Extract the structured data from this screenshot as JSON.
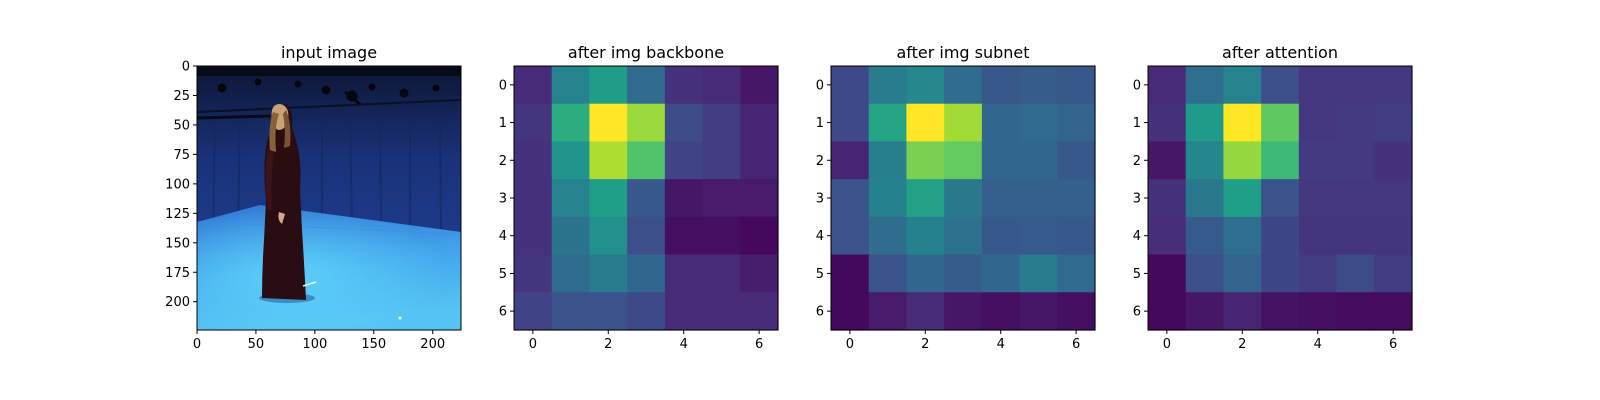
{
  "chart_data": [
    {
      "type": "image",
      "title": "input image",
      "image_width": 224,
      "image_height": 224,
      "xlim": [
        0,
        224
      ],
      "ylim": [
        224,
        0
      ],
      "xticks": [
        0,
        50,
        100,
        150,
        200
      ],
      "yticks": [
        0,
        25,
        50,
        75,
        100,
        125,
        150,
        175,
        200
      ],
      "xtick_labels": [
        "0",
        "50",
        "100",
        "150",
        "200"
      ],
      "ytick_labels": [
        "0",
        "25",
        "50",
        "75",
        "100",
        "125",
        "150",
        "175",
        "200"
      ],
      "content": "photo of a woman in a long dark dress standing in a blue-walled motion-capture studio with cameras mounted above",
      "colors": {
        "wall_top": "#101a3a",
        "wall_mid": "#1d3c8a",
        "floor_far": "#2f78d8",
        "floor_near": "#57c8f6"
      }
    },
    {
      "type": "heatmap",
      "title": "after img backbone",
      "colormap": "viridis",
      "xticks": [
        0,
        2,
        4,
        6
      ],
      "yticks": [
        0,
        1,
        2,
        3,
        4,
        5,
        6
      ],
      "xtick_labels": [
        "0",
        "2",
        "4",
        "6"
      ],
      "ytick_labels": [
        "0",
        "1",
        "2",
        "3",
        "4",
        "5",
        "6"
      ],
      "values": [
        [
          0.12,
          0.45,
          0.55,
          0.34,
          0.14,
          0.12,
          0.06
        ],
        [
          0.15,
          0.62,
          1.0,
          0.85,
          0.23,
          0.18,
          0.1
        ],
        [
          0.14,
          0.52,
          0.88,
          0.72,
          0.2,
          0.18,
          0.1
        ],
        [
          0.14,
          0.45,
          0.56,
          0.27,
          0.06,
          0.07,
          0.07
        ],
        [
          0.14,
          0.38,
          0.5,
          0.24,
          0.04,
          0.04,
          0.02
        ],
        [
          0.15,
          0.35,
          0.42,
          0.33,
          0.12,
          0.12,
          0.08
        ],
        [
          0.2,
          0.26,
          0.26,
          0.22,
          0.12,
          0.12,
          0.12
        ]
      ]
    },
    {
      "type": "heatmap",
      "title": "after img subnet",
      "colormap": "viridis",
      "xticks": [
        0,
        2,
        4,
        6
      ],
      "yticks": [
        0,
        1,
        2,
        3,
        4,
        5,
        6
      ],
      "xtick_labels": [
        "0",
        "2",
        "4",
        "6"
      ],
      "ytick_labels": [
        "0",
        "1",
        "2",
        "3",
        "4",
        "5",
        "6"
      ],
      "values": [
        [
          0.22,
          0.42,
          0.47,
          0.35,
          0.27,
          0.29,
          0.27
        ],
        [
          0.22,
          0.58,
          1.0,
          0.86,
          0.33,
          0.34,
          0.32
        ],
        [
          0.1,
          0.43,
          0.8,
          0.76,
          0.33,
          0.33,
          0.27
        ],
        [
          0.26,
          0.44,
          0.57,
          0.4,
          0.3,
          0.3,
          0.3
        ],
        [
          0.25,
          0.35,
          0.44,
          0.37,
          0.27,
          0.28,
          0.27
        ],
        [
          0.02,
          0.26,
          0.33,
          0.29,
          0.33,
          0.42,
          0.34
        ],
        [
          0.02,
          0.07,
          0.12,
          0.06,
          0.04,
          0.06,
          0.04
        ]
      ]
    },
    {
      "type": "heatmap",
      "title": "after attention",
      "colormap": "viridis",
      "xticks": [
        0,
        2,
        4,
        6
      ],
      "yticks": [
        0,
        1,
        2,
        3,
        4,
        5,
        6
      ],
      "xtick_labels": [
        "0",
        "2",
        "4",
        "6"
      ],
      "ytick_labels": [
        "0",
        "1",
        "2",
        "3",
        "4",
        "5",
        "6"
      ],
      "values": [
        [
          0.12,
          0.36,
          0.45,
          0.24,
          0.16,
          0.16,
          0.16
        ],
        [
          0.14,
          0.54,
          1.0,
          0.75,
          0.16,
          0.17,
          0.18
        ],
        [
          0.06,
          0.46,
          0.84,
          0.68,
          0.17,
          0.17,
          0.14
        ],
        [
          0.14,
          0.4,
          0.56,
          0.26,
          0.16,
          0.16,
          0.16
        ],
        [
          0.13,
          0.28,
          0.36,
          0.21,
          0.15,
          0.15,
          0.15
        ],
        [
          0.02,
          0.24,
          0.32,
          0.21,
          0.18,
          0.23,
          0.18
        ],
        [
          0.02,
          0.06,
          0.1,
          0.05,
          0.04,
          0.03,
          0.03
        ]
      ]
    }
  ]
}
